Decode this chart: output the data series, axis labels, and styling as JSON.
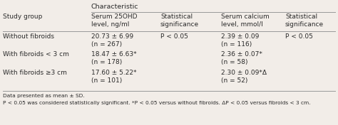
{
  "title": "Characteristic",
  "col_headers": [
    "Study group",
    "Serum 25OHD\nlevel, ng/ml",
    "Statistical\nsignificance",
    "Serum calcium\nlevel, mmol/l",
    "Statistical\nsignificance"
  ],
  "rows": [
    [
      "Without fibroids",
      "20.73 ± 6.99\n(n = 267)",
      "P < 0.05",
      "2.39 ± 0.09\n(n = 116)",
      "P < 0.05"
    ],
    [
      "With fibroids < 3 cm",
      "18.47 ± 6.63*\n(n = 178)",
      "",
      "2.36 ± 0.07*\n(n = 58)",
      ""
    ],
    [
      "With fibroids ≥3 cm",
      "17.60 ± 5.22*\n(n = 101)",
      "",
      "2.30 ± 0.09*Δ\n(n = 52)",
      ""
    ]
  ],
  "footnotes": [
    "Data presented as mean ± SD.",
    "P < 0.05 was considered statistically significant. *P < 0.05 versus without fibroids. ΔP < 0.05 versus fibroids < 3 cm."
  ],
  "bg_color": "#f2ede8",
  "text_color": "#2a2a2a",
  "line_color": "#999999",
  "fontsize": 6.5,
  "footnote_fontsize": 5.3,
  "title_fontsize": 6.8
}
